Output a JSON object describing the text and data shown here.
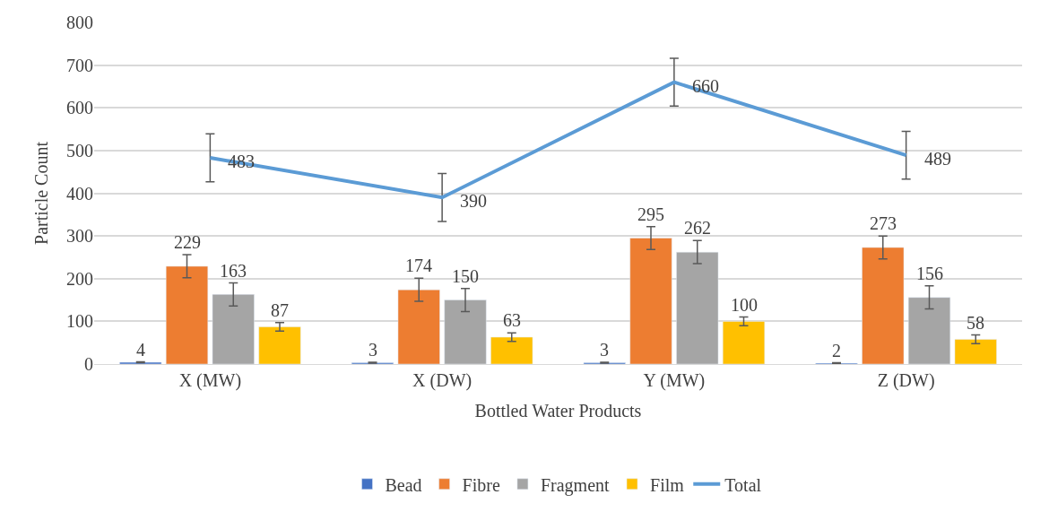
{
  "chart_data": {
    "type": "bar",
    "xlabel": "Bottled Water Products",
    "ylabel": "Particle Count",
    "categories": [
      "X (MW)",
      "X (DW)",
      "Y (MW)",
      "Z (DW)"
    ],
    "series": [
      {
        "name": "Bead",
        "color": "#4472c4",
        "values": [
          4,
          3,
          3,
          2
        ],
        "errors": [
          1,
          1,
          1,
          1
        ]
      },
      {
        "name": "Fibre",
        "color": "#ed7d31",
        "values": [
          229,
          174,
          295,
          273
        ],
        "errors": [
          27,
          27,
          27,
          27
        ]
      },
      {
        "name": "Fragment",
        "color": "#a5a5a5",
        "values": [
          163,
          150,
          262,
          156
        ],
        "errors": [
          27,
          27,
          27,
          27
        ]
      },
      {
        "name": "Film",
        "color": "#ffc000",
        "values": [
          87,
          63,
          100,
          58
        ],
        "errors": [
          10,
          10,
          10,
          10
        ]
      },
      {
        "name": "Total",
        "type": "line",
        "color": "#5b9bd5",
        "values": [
          483,
          390,
          660,
          489
        ],
        "errors": [
          56,
          56,
          56,
          56
        ]
      }
    ],
    "ylim": [
      0,
      800
    ],
    "yticks": [
      0,
      100,
      200,
      300,
      400,
      500,
      600,
      700,
      800
    ],
    "grid": "y",
    "legend": "bottom",
    "data_labels": true,
    "marker": "none",
    "line_style": "solid"
  }
}
